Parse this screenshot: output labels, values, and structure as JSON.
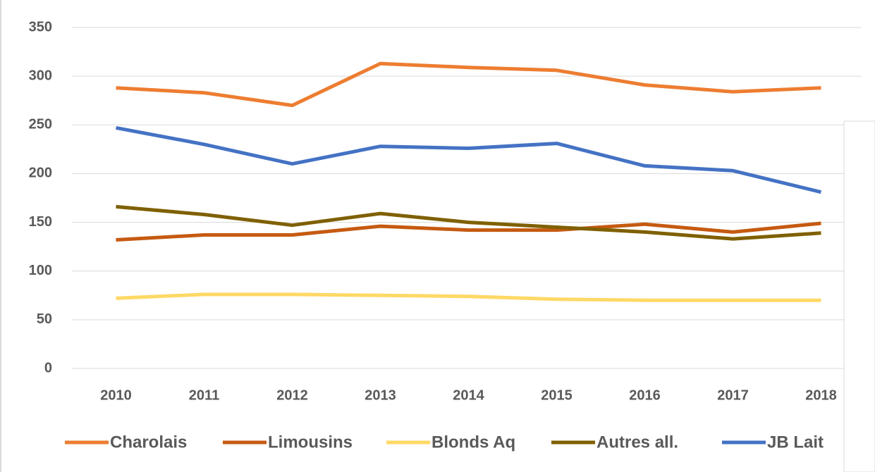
{
  "chart_data": {
    "type": "line",
    "categories": [
      "2010",
      "2011",
      "2012",
      "2013",
      "2014",
      "2015",
      "2016",
      "2017",
      "2018"
    ],
    "series": [
      {
        "name": "Charolais",
        "color": "#ed7d31",
        "values": [
          288,
          283,
          270,
          313,
          309,
          306,
          291,
          284,
          288
        ]
      },
      {
        "name": "Limousins",
        "color": "#c55a11",
        "values": [
          132,
          137,
          137,
          146,
          142,
          142,
          148,
          140,
          149
        ]
      },
      {
        "name": "Blonds Aq",
        "color": "#ffd966",
        "values": [
          72,
          76,
          76,
          75,
          74,
          71,
          70,
          70,
          70
        ]
      },
      {
        "name": "Autres all.",
        "color": "#7f6000",
        "values": [
          166,
          158,
          147,
          159,
          150,
          145,
          140,
          133,
          139
        ]
      },
      {
        "name": "JB Lait",
        "color": "#4472c4",
        "values": [
          247,
          230,
          210,
          228,
          226,
          231,
          208,
          203,
          181
        ]
      }
    ],
    "ylim": [
      0,
      350
    ],
    "yticks": [
      0,
      50,
      100,
      150,
      200,
      250,
      300,
      350
    ],
    "grid": true,
    "legend": "bottom"
  }
}
